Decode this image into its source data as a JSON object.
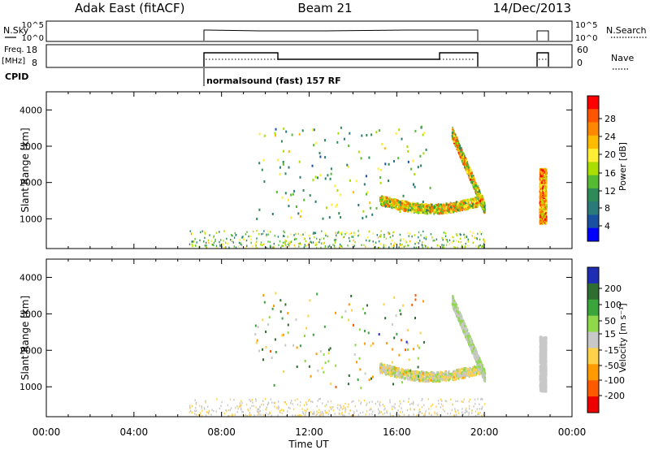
{
  "header": {
    "station": "Adak East (fitACF)",
    "beam": "Beam 21",
    "date": "14/Dec/2013"
  },
  "summary": {
    "nsky_label": "N.Sky",
    "nsky_ticks": [
      "10^5",
      "10^0"
    ],
    "nsearch_label": "N.Search",
    "freq_label_1": "Freq.",
    "freq_label_2": "[MHz]",
    "freq_ticks": [
      "18",
      "8"
    ],
    "nave_label": "Nave",
    "nave_ticks": [
      "60",
      "0"
    ],
    "cpid_label": "CPID",
    "cpid_text": "normalsound (fast) 157 RF"
  },
  "colorbars": {
    "power": {
      "label": "Power [dB]",
      "ticks": [
        "28",
        "24",
        "20",
        "16",
        "12",
        "8",
        "4"
      ],
      "colors": [
        "#ff0000",
        "#ff5500",
        "#ff8800",
        "#ffbb00",
        "#ffee33",
        "#aadd00",
        "#55bb33",
        "#2e8b57",
        "#2a7a7a",
        "#1a50a0",
        "#0000ff"
      ]
    },
    "velocity": {
      "label": "Velocity [m s⁻¹]",
      "ticks": [
        "200",
        "100",
        "50",
        "15",
        "-15",
        "-50",
        "-100",
        "-200"
      ],
      "colors": [
        "#1e2db4",
        "#2e6e30",
        "#3aa53a",
        "#8ed84a",
        "#c8c8c8",
        "#ffd24a",
        "#ff9a00",
        "#ff5a00",
        "#ee0000"
      ]
    }
  },
  "axes": {
    "x_ticks": [
      "00:00",
      "04:00",
      "08:00",
      "12:00",
      "16:00",
      "20:00",
      "00:00"
    ],
    "x_label": "Time UT",
    "y_ticks": [
      "4000",
      "3000",
      "2000",
      "1000"
    ],
    "y_label": "Slant Range [km]"
  },
  "chart_data": [
    {
      "type": "heatmap",
      "name": "power",
      "title": "",
      "xlabel": "Time UT",
      "ylabel": "Slant Range [km]",
      "xlim_hours": [
        0,
        24
      ],
      "ylim_km": [
        180,
        4500
      ],
      "zlabel": "Power [dB]",
      "zlim": [
        0,
        30
      ],
      "regions": [
        {
          "t": [
            6.5,
            20.0
          ],
          "r": [
            200,
            700
          ],
          "z": [
            6,
            20
          ],
          "sparse": true
        },
        {
          "t": [
            15.2,
            19.9
          ],
          "r": [
            1100,
            1750
          ],
          "z": [
            10,
            26
          ],
          "sparse": false
        },
        {
          "t": [
            18.5,
            20.0
          ],
          "r": [
            1200,
            3500
          ],
          "z": [
            8,
            28
          ],
          "sparse": false
        },
        {
          "t": [
            22.5,
            22.8
          ],
          "r": [
            900,
            2400
          ],
          "z": [
            14,
            30
          ],
          "sparse": false
        },
        {
          "t": [
            9.5,
            17.5
          ],
          "r": [
            1000,
            3600
          ],
          "z": [
            4,
            20
          ],
          "sparse": true
        }
      ]
    },
    {
      "type": "heatmap",
      "name": "velocity",
      "title": "",
      "xlabel": "Time UT",
      "ylabel": "Slant Range [km]",
      "xlim_hours": [
        0,
        24
      ],
      "ylim_km": [
        180,
        4500
      ],
      "zlabel": "Velocity [m s⁻¹]",
      "zlim": [
        -250,
        250
      ],
      "regions": [
        {
          "t": [
            6.5,
            20.0
          ],
          "r": [
            200,
            700
          ],
          "z": [
            -60,
            20
          ],
          "sparse": true
        },
        {
          "t": [
            15.2,
            19.9
          ],
          "r": [
            1100,
            1750
          ],
          "z": [
            -90,
            60
          ],
          "sparse": false
        },
        {
          "t": [
            18.5,
            20.0
          ],
          "r": [
            1200,
            3500
          ],
          "z": [
            -15,
            60
          ],
          "sparse": false
        },
        {
          "t": [
            22.5,
            22.8
          ],
          "r": [
            900,
            2400
          ],
          "z": [
            -20,
            15
          ],
          "sparse": false
        },
        {
          "t": [
            9.5,
            17.5
          ],
          "r": [
            1000,
            3600
          ],
          "z": [
            -150,
            200
          ],
          "sparse": true
        }
      ]
    }
  ]
}
